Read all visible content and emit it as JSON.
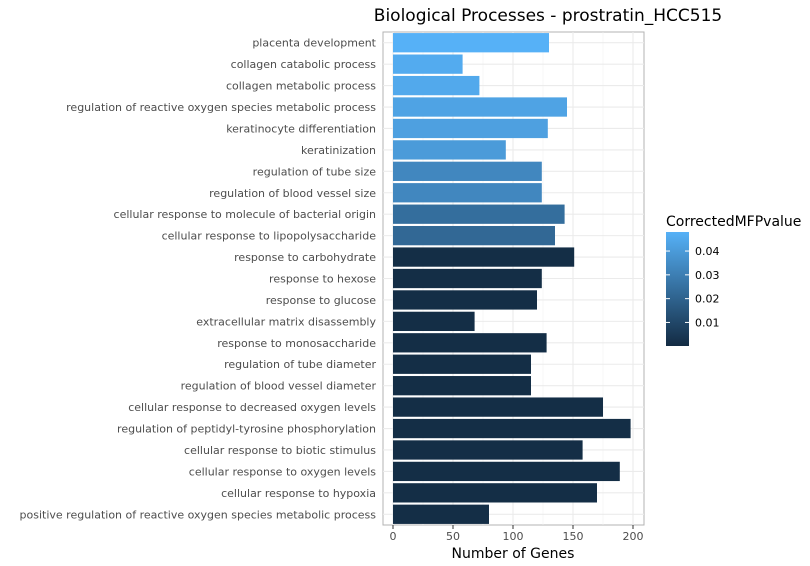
{
  "chart_data": {
    "type": "bar",
    "orientation": "horizontal",
    "title": "Biological Processes - prostratin_HCC515",
    "xlabel": "Number of Genes",
    "ylabel": "",
    "xlim": [
      0,
      205
    ],
    "x_ticks": [
      0,
      50,
      100,
      150,
      200
    ],
    "grid": true,
    "categories": [
      "placenta development",
      "collagen catabolic process",
      "collagen metabolic process",
      "regulation of reactive oxygen species metabolic process",
      "keratinocyte differentiation",
      "keratinization",
      "regulation of tube size",
      "regulation of blood vessel size",
      "cellular response to molecule of bacterial origin",
      "cellular response to lipopolysaccharide",
      "response to carbohydrate",
      "response to hexose",
      "response to glucose",
      "extracellular matrix disassembly",
      "response to monosaccharide",
      "regulation of tube diameter",
      "regulation of blood vessel diameter",
      "cellular response to decreased oxygen levels",
      "regulation of peptidyl-tyrosine phosphorylation",
      "cellular response to biotic stimulus",
      "cellular response to oxygen levels",
      "cellular response to hypoxia",
      "positive regulation of reactive oxygen species metabolic process"
    ],
    "values": [
      130,
      58,
      72,
      145,
      129,
      94,
      124,
      124,
      143,
      135,
      151,
      124,
      120,
      68,
      128,
      115,
      115,
      175,
      198,
      158,
      189,
      170,
      80
    ],
    "color_values": [
      0.048,
      0.046,
      0.045,
      0.043,
      0.042,
      0.04,
      0.033,
      0.033,
      0.024,
      0.022,
      0.001,
      0.001,
      0.001,
      0.001,
      0.001,
      0.001,
      0.001,
      0.001,
      0.001,
      0.001,
      0.001,
      0.001,
      0.001
    ],
    "legend": {
      "title": "CorrectedMFPvalue",
      "position": "right",
      "range": [
        0.0001,
        0.048
      ],
      "ticks": [
        0.04,
        0.03,
        0.02,
        0.01
      ],
      "tick_labels": [
        "0.04",
        "0.03",
        "0.02",
        "0.01"
      ],
      "color_low": "#132B43",
      "color_high": "#56B1F7"
    }
  }
}
